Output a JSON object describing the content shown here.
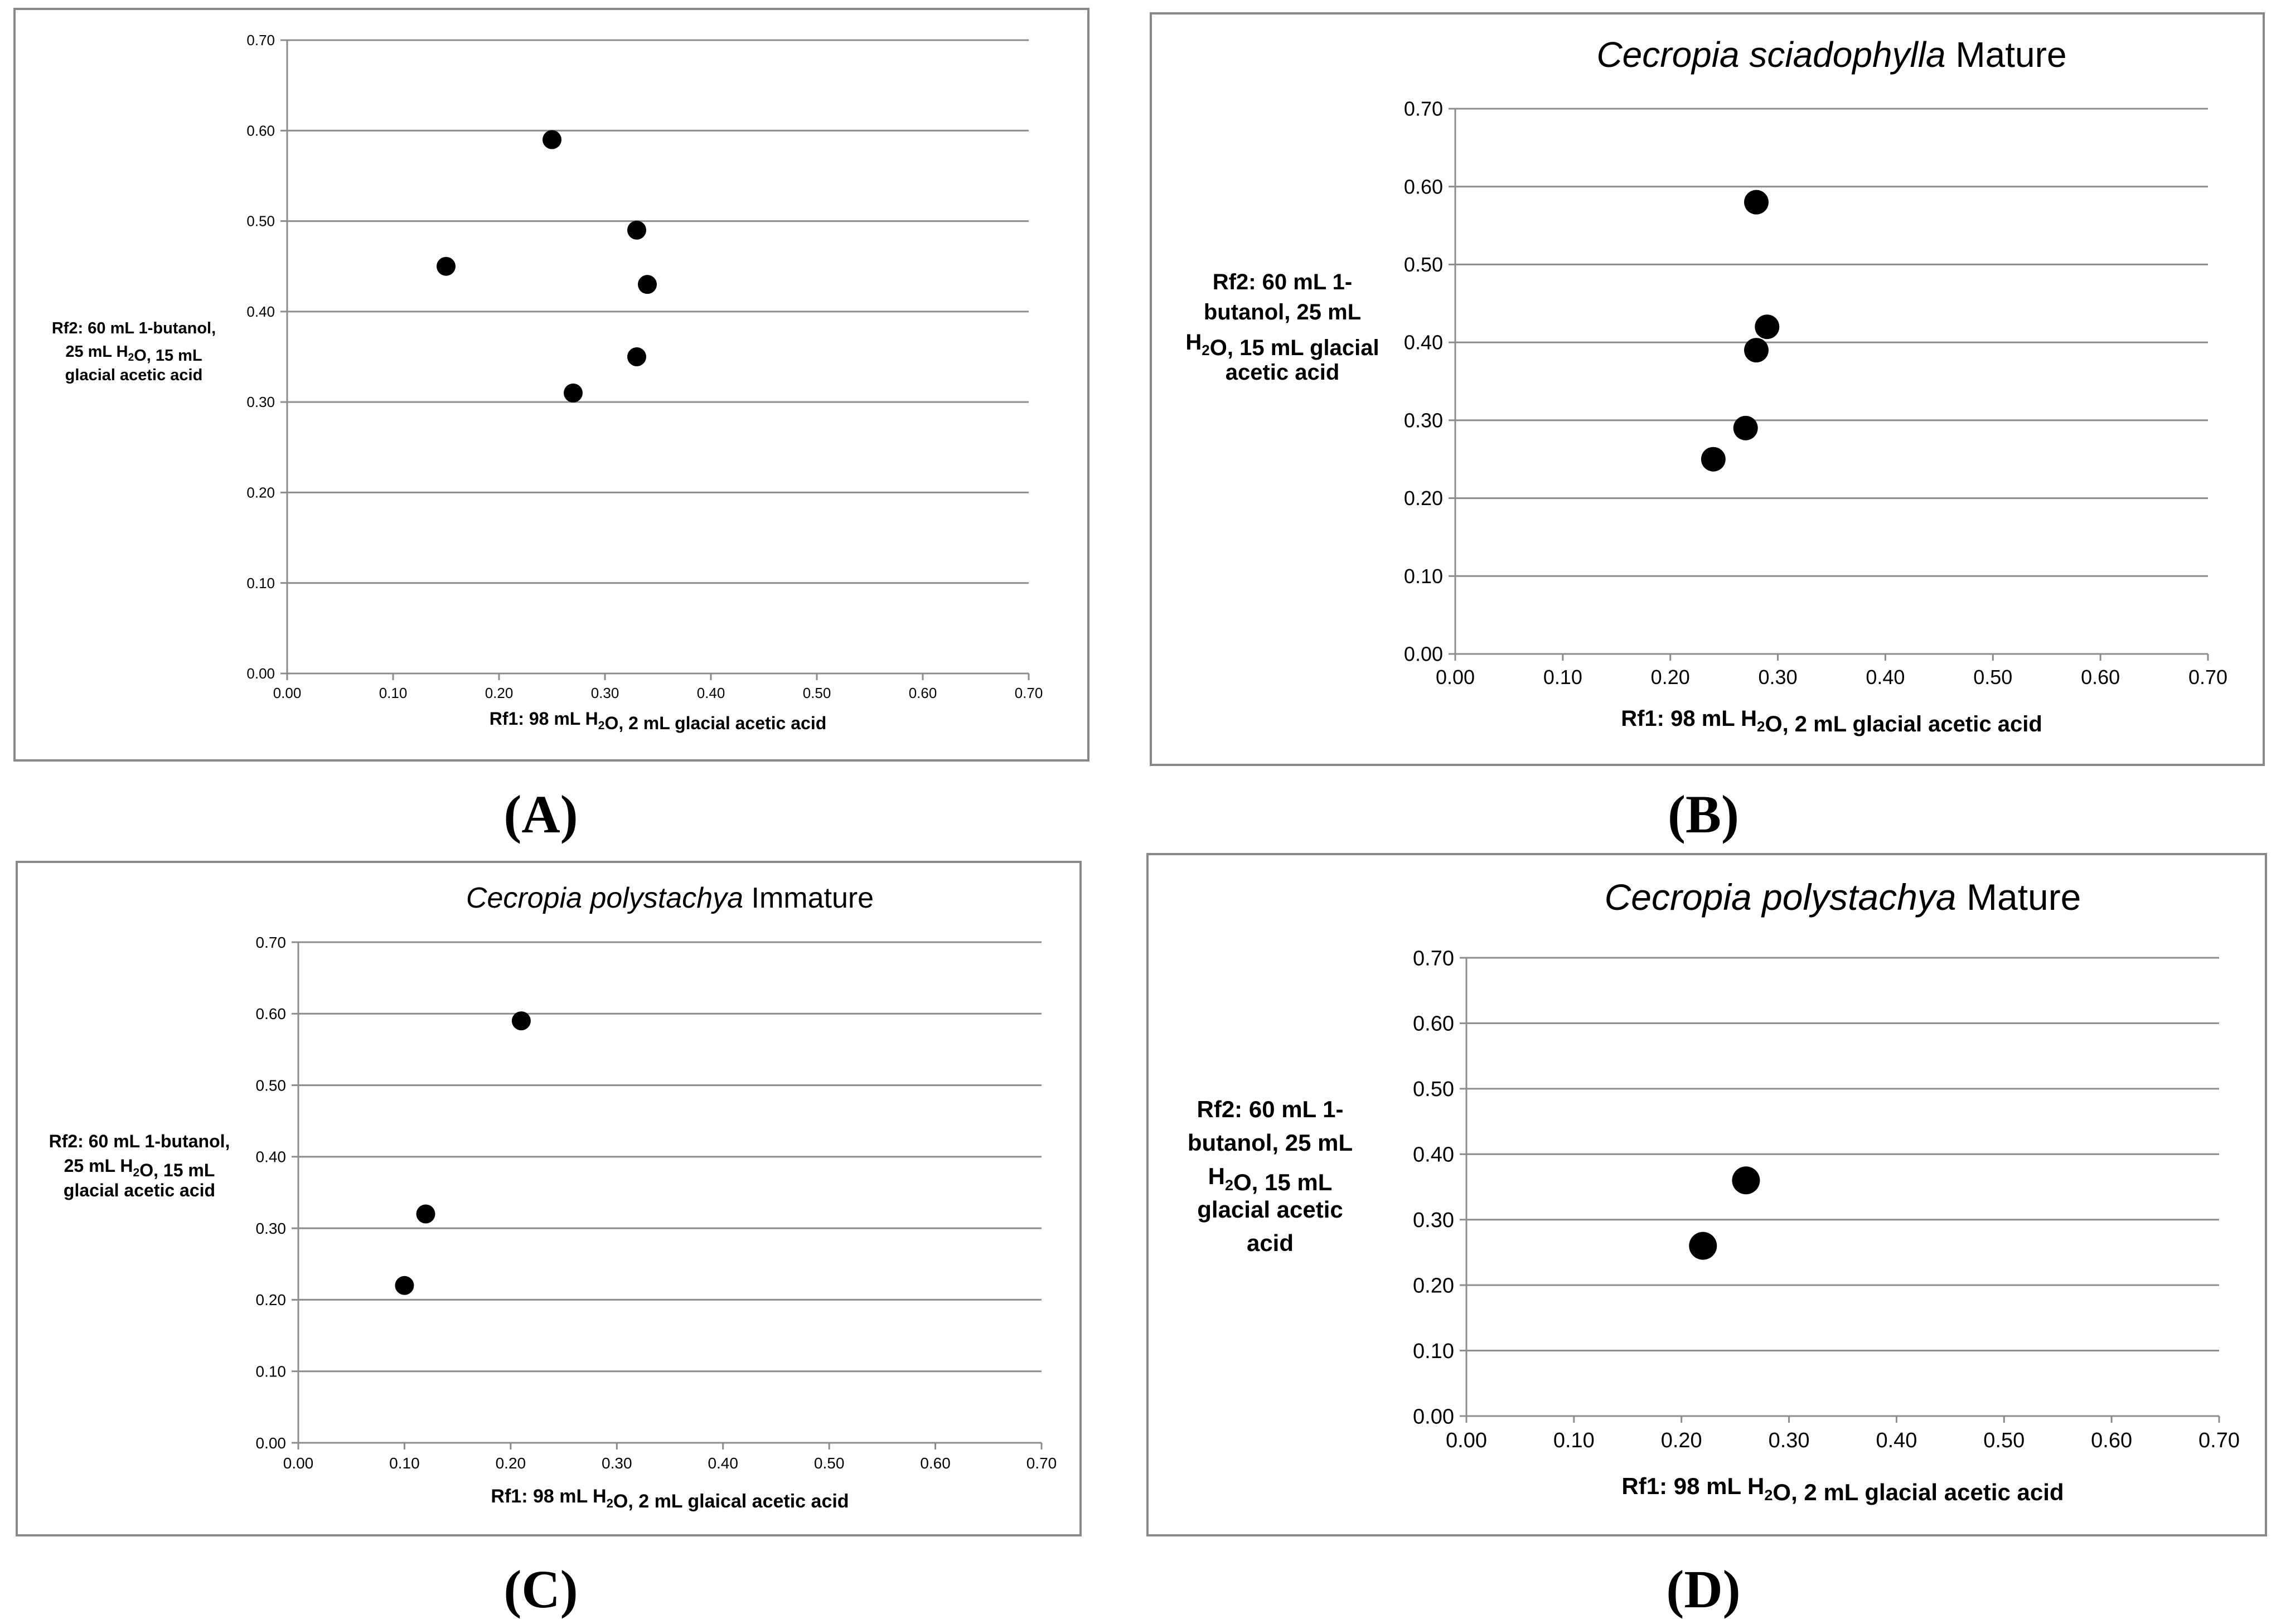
{
  "chart_data": [
    {
      "type": "scatter",
      "panel_label": "(A)",
      "title": "",
      "title_parts": [],
      "xlabel": "Rf1: 98 mL H₂O, 2 mL glacial acetic acid",
      "ylabel_lines": [
        "Rf2: 60 mL 1-butanol,",
        "25 mL H₂O, 15 mL",
        "glacial acetic acid"
      ],
      "xlim": [
        0,
        0.7
      ],
      "ylim": [
        0,
        0.7
      ],
      "xticks": [
        "0.00",
        "0.10",
        "0.20",
        "0.30",
        "0.40",
        "0.50",
        "0.60",
        "0.70"
      ],
      "yticks": [
        "0.00",
        "0.10",
        "0.20",
        "0.30",
        "0.40",
        "0.50",
        "0.60",
        "0.70"
      ],
      "grid": "horizontal",
      "points": [
        {
          "x": 0.25,
          "y": 0.59
        },
        {
          "x": 0.33,
          "y": 0.49
        },
        {
          "x": 0.15,
          "y": 0.45
        },
        {
          "x": 0.34,
          "y": 0.43
        },
        {
          "x": 0.33,
          "y": 0.35
        },
        {
          "x": 0.27,
          "y": 0.31
        }
      ]
    },
    {
      "type": "scatter",
      "panel_label": "(B)",
      "title": "Cecropia sciadophylla Mature",
      "title_parts": [
        {
          "text": "Cecropia sciadophylla",
          "italic": true
        },
        {
          "text": " Mature",
          "italic": false
        }
      ],
      "xlabel": "Rf1: 98 mL H₂O, 2 mL glacial acetic acid",
      "ylabel_lines": [
        "Rf2: 60 mL 1-",
        "butanol, 25 mL",
        "H₂O, 15 mL glacial",
        "acetic acid"
      ],
      "xlim": [
        0,
        0.7
      ],
      "ylim": [
        0,
        0.7
      ],
      "xticks": [
        "0.00",
        "0.10",
        "0.20",
        "0.30",
        "0.40",
        "0.50",
        "0.60",
        "0.70"
      ],
      "yticks": [
        "0.00",
        "0.10",
        "0.20",
        "0.30",
        "0.40",
        "0.50",
        "0.60",
        "0.70"
      ],
      "grid": "horizontal",
      "points": [
        {
          "x": 0.28,
          "y": 0.58
        },
        {
          "x": 0.29,
          "y": 0.42
        },
        {
          "x": 0.28,
          "y": 0.39
        },
        {
          "x": 0.27,
          "y": 0.29
        },
        {
          "x": 0.24,
          "y": 0.25
        }
      ]
    },
    {
      "type": "scatter",
      "panel_label": "(C)",
      "title": "Cecropia polystachya Immature",
      "title_parts": [
        {
          "text": "Cecropia polystachya",
          "italic": true
        },
        {
          "text": " Immature",
          "italic": false
        }
      ],
      "xlabel": "Rf1: 98 mL H₂O, 2 mL glaical acetic acid",
      "ylabel_lines": [
        "Rf2: 60 mL 1-butanol,",
        "25 mL H₂O, 15 mL",
        "glacial acetic acid"
      ],
      "xlim": [
        0,
        0.7
      ],
      "ylim": [
        0,
        0.7
      ],
      "xticks": [
        "0.00",
        "0.10",
        "0.20",
        "0.30",
        "0.40",
        "0.50",
        "0.60",
        "0.70"
      ],
      "yticks": [
        "0.00",
        "0.10",
        "0.20",
        "0.30",
        "0.40",
        "0.50",
        "0.60",
        "0.70"
      ],
      "grid": "horizontal",
      "points": [
        {
          "x": 0.21,
          "y": 0.59
        },
        {
          "x": 0.12,
          "y": 0.32
        },
        {
          "x": 0.1,
          "y": 0.22
        }
      ]
    },
    {
      "type": "scatter",
      "panel_label": "(D)",
      "title": "Cecropia polystachya Mature",
      "title_parts": [
        {
          "text": "Cecropia polystachya",
          "italic": true
        },
        {
          "text": " Mature",
          "italic": false
        }
      ],
      "xlabel": "Rf1: 98 mL H₂O, 2 mL glacial acetic acid",
      "ylabel_lines": [
        "Rf2: 60 mL 1-",
        "butanol,    25 mL",
        "H₂O, 15 mL",
        "glacial acetic",
        "acid"
      ],
      "xlim": [
        0,
        0.7
      ],
      "ylim": [
        0,
        0.7
      ],
      "xticks": [
        "0.00",
        "0.10",
        "0.20",
        "0.30",
        "0.40",
        "0.50",
        "0.60",
        "0.70"
      ],
      "yticks": [
        "0.00",
        "0.10",
        "0.20",
        "0.30",
        "0.40",
        "0.50",
        "0.60",
        "0.70"
      ],
      "grid": "horizontal",
      "points": [
        {
          "x": 0.26,
          "y": 0.36
        },
        {
          "x": 0.22,
          "y": 0.26
        }
      ]
    }
  ]
}
